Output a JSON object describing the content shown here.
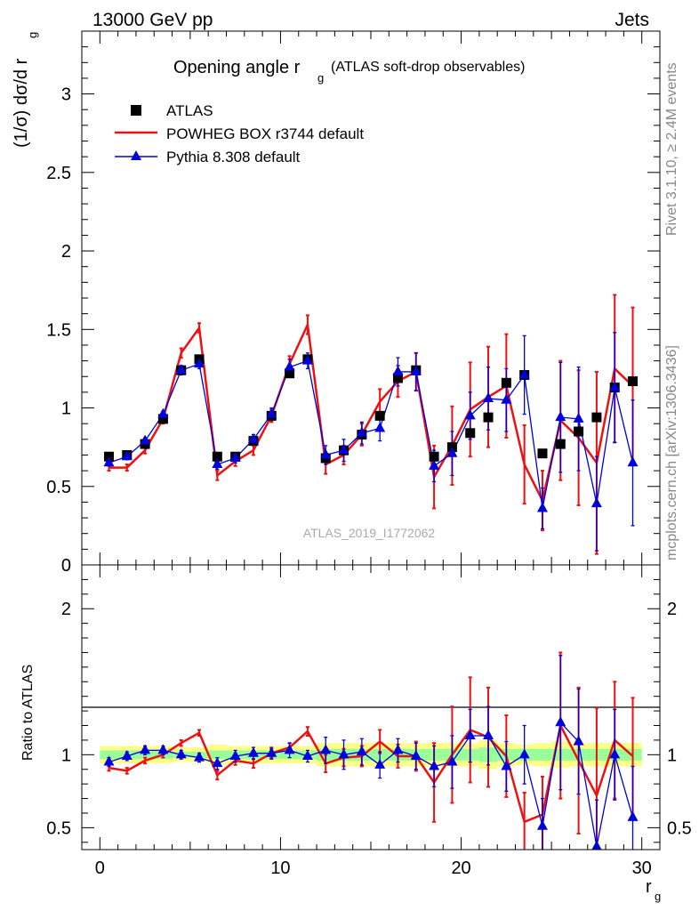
{
  "header": {
    "energy": "13000 GeV pp",
    "category": "Jets"
  },
  "side_labels": {
    "rivet": "Rivet 3.1.10, ≥ 2.4M events",
    "mcplots": "mcplots.cern.ch [arXiv:1306.3436]"
  },
  "chart_data": [
    {
      "type": "scatter",
      "title_main": "Opening angle r",
      "title_sub": "g",
      "title_tail": "(ATLAS soft-drop observables)",
      "ylabel": "(1/σ) dσ/d r",
      "ylabel_sub": "g",
      "watermark": "ATLAS_2019_I1772062",
      "xlim": [
        -1,
        31
      ],
      "ylim": [
        0,
        3.4
      ],
      "yticks": [
        0,
        0.5,
        1,
        1.5,
        2,
        2.5,
        3
      ],
      "ytick_labels": [
        "0",
        "0.5",
        "1",
        "1.5",
        "2",
        "2.5",
        "3"
      ],
      "legend_position": "top-left",
      "x": [
        0.5,
        1.5,
        2.5,
        3.5,
        4.5,
        5.5,
        6.5,
        7.5,
        8.5,
        9.5,
        10.5,
        11.5,
        12.5,
        13.5,
        14.5,
        15.5,
        16.5,
        17.5,
        18.5,
        19.5,
        20.5,
        21.5,
        22.5,
        23.5,
        24.5,
        25.5,
        26.5,
        27.5,
        28.5,
        29.5
      ],
      "series": [
        {
          "name": "ATLAS",
          "color": "#000000",
          "marker": "square",
          "values": [
            0.69,
            0.7,
            0.77,
            0.93,
            1.24,
            1.31,
            0.69,
            0.69,
            0.79,
            0.95,
            1.22,
            1.31,
            0.68,
            0.73,
            0.83,
            0.95,
            1.19,
            1.24,
            0.69,
            0.75,
            0.84,
            0.94,
            1.16,
            1.21,
            0.71,
            0.77,
            0.85,
            0.94,
            1.13,
            1.17
          ]
        },
        {
          "name": "POWHEG BOX r3744 default",
          "color": "#ee1111",
          "marker": "line",
          "values": [
            0.62,
            0.62,
            0.73,
            0.93,
            1.35,
            1.51,
            0.57,
            0.66,
            0.73,
            0.95,
            1.28,
            1.53,
            0.64,
            0.7,
            0.83,
            1.04,
            1.17,
            1.23,
            0.56,
            0.76,
            0.99,
            1.07,
            1.14,
            0.64,
            0.41,
            0.92,
            0.81,
            0.65,
            1.25,
            1.14
          ],
          "errors": [
            0.02,
            0.02,
            0.02,
            0.03,
            0.03,
            0.03,
            0.03,
            0.03,
            0.03,
            0.04,
            0.05,
            0.06,
            0.06,
            0.06,
            0.07,
            0.08,
            0.1,
            0.12,
            0.2,
            0.25,
            0.3,
            0.32,
            0.33,
            0.25,
            0.19,
            0.38,
            0.43,
            0.58,
            0.47,
            0.5
          ]
        },
        {
          "name": "Pythia 8.308 default",
          "color": "#0000dd",
          "marker": "triangle",
          "values": [
            0.65,
            0.69,
            0.79,
            0.96,
            1.24,
            1.28,
            0.64,
            0.68,
            0.8,
            0.96,
            1.26,
            1.3,
            0.7,
            0.73,
            0.84,
            0.87,
            1.23,
            1.23,
            0.63,
            0.71,
            0.95,
            1.06,
            1.05,
            1.21,
            0.36,
            0.94,
            0.93,
            0.39,
            1.13,
            0.65
          ],
          "errors": [
            0.02,
            0.02,
            0.02,
            0.02,
            0.03,
            0.03,
            0.03,
            0.03,
            0.03,
            0.04,
            0.05,
            0.05,
            0.06,
            0.07,
            0.07,
            0.08,
            0.09,
            0.12,
            0.1,
            0.14,
            0.15,
            0.2,
            0.2,
            0.25,
            0.13,
            0.35,
            0.33,
            0.3,
            0.35,
            0.4
          ]
        }
      ]
    },
    {
      "type": "scatter",
      "ylabel": "Ratio to ATLAS",
      "xlabel": "r",
      "xlabel_sub": "g",
      "xlim": [
        -1,
        31
      ],
      "ylim": [
        0.35,
        2.3
      ],
      "xticks": [
        0,
        10,
        20,
        30
      ],
      "xtick_labels": [
        "0",
        "10",
        "20",
        "30"
      ],
      "yticks": [
        0.5,
        1,
        2
      ],
      "ytick_labels": [
        "0.5",
        "1",
        "2"
      ],
      "band_green_halfwidth": [
        0.03,
        0.03,
        0.03,
        0.03,
        0.02,
        0.02,
        0.03,
        0.03,
        0.03,
        0.03,
        0.03,
        0.03,
        0.04,
        0.04,
        0.04,
        0.04,
        0.04,
        0.04,
        0.04,
        0.04,
        0.04,
        0.05,
        0.04,
        0.04,
        0.04,
        0.04,
        0.04,
        0.04,
        0.04,
        0.04
      ],
      "band_yellow_halfwidth": [
        0.06,
        0.06,
        0.06,
        0.06,
        0.05,
        0.05,
        0.07,
        0.06,
        0.06,
        0.06,
        0.06,
        0.06,
        0.08,
        0.08,
        0.08,
        0.08,
        0.08,
        0.08,
        0.08,
        0.08,
        0.08,
        0.1,
        0.08,
        0.07,
        0.08,
        0.09,
        0.08,
        0.08,
        0.08,
        0.08
      ],
      "series": [
        {
          "name": "POWHEG BOX r3744 default",
          "color": "#ee1111",
          "values": [
            0.91,
            0.89,
            0.96,
            1.0,
            1.08,
            1.15,
            0.86,
            0.96,
            0.94,
            1.01,
            1.05,
            1.16,
            0.94,
            0.98,
            0.99,
            1.09,
            0.99,
            0.99,
            0.81,
            1.0,
            1.17,
            1.12,
            0.99,
            0.54,
            0.59,
            1.2,
            0.96,
            0.72,
            1.1,
            0.99
          ],
          "errors": [
            0.02,
            0.02,
            0.02,
            0.02,
            0.02,
            0.02,
            0.03,
            0.03,
            0.03,
            0.03,
            0.03,
            0.03,
            0.06,
            0.06,
            0.07,
            0.08,
            0.08,
            0.1,
            0.27,
            0.33,
            0.36,
            0.34,
            0.28,
            0.2,
            0.26,
            0.5,
            0.5,
            0.6,
            0.4,
            0.4
          ]
        },
        {
          "name": "Pythia 8.308 default",
          "color": "#0000dd",
          "values": [
            0.95,
            0.99,
            1.03,
            1.03,
            1.0,
            0.98,
            0.94,
            0.99,
            1.01,
            1.01,
            1.03,
            0.99,
            1.03,
            1.0,
            1.02,
            0.93,
            1.03,
            0.99,
            0.92,
            0.95,
            1.13,
            1.13,
            0.92,
            1.0,
            0.51,
            1.22,
            1.09,
            0.37,
            1.0,
            0.57
          ],
          "errors": [
            0.03,
            0.03,
            0.03,
            0.03,
            0.03,
            0.03,
            0.04,
            0.04,
            0.04,
            0.04,
            0.05,
            0.04,
            0.09,
            0.1,
            0.09,
            0.09,
            0.08,
            0.09,
            0.14,
            0.18,
            0.18,
            0.2,
            0.17,
            0.2,
            0.19,
            0.46,
            0.36,
            0.32,
            0.31,
            0.35
          ]
        }
      ]
    }
  ]
}
